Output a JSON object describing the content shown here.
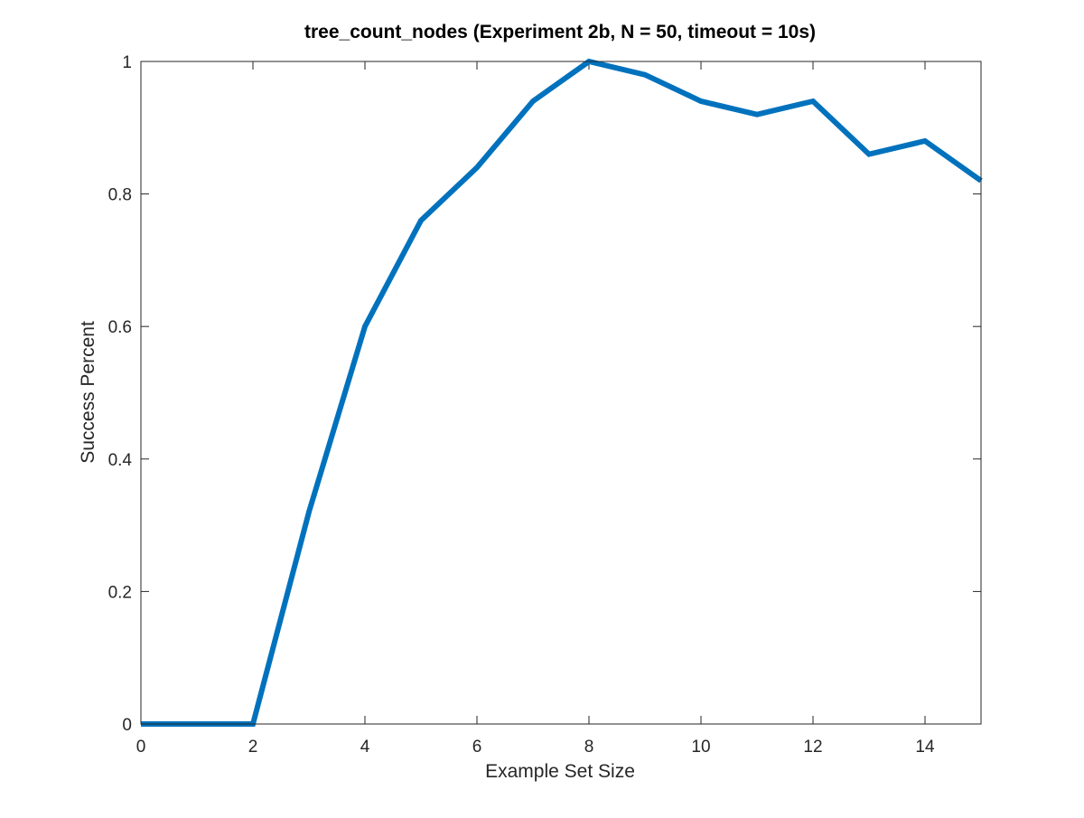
{
  "chart_data": {
    "type": "line",
    "title": "tree_count_nodes (Experiment 2b, N = 50, timeout = 10s)",
    "xlabel": "Example Set Size",
    "ylabel": "Success Percent",
    "xlim": [
      0,
      15
    ],
    "ylim": [
      0,
      1
    ],
    "xticks": [
      0,
      2,
      4,
      6,
      8,
      10,
      12,
      14
    ],
    "xtick_labels": [
      "0",
      "2",
      "4",
      "6",
      "8",
      "10",
      "12",
      "14"
    ],
    "yticks": [
      0,
      0.2,
      0.4,
      0.6,
      0.8,
      1
    ],
    "ytick_labels": [
      "0",
      "0.2",
      "0.4",
      "0.6",
      "0.8",
      "1"
    ],
    "grid": false,
    "series": [
      {
        "color": "#0072BD",
        "x": [
          0,
          1,
          2,
          3,
          4,
          5,
          6,
          7,
          8,
          9,
          10,
          11,
          12,
          13,
          14,
          15
        ],
        "y": [
          0,
          0,
          0,
          0.32,
          0.6,
          0.76,
          0.84,
          0.94,
          1.0,
          0.98,
          0.94,
          0.92,
          0.94,
          0.86,
          0.88,
          0.82
        ]
      }
    ]
  }
}
